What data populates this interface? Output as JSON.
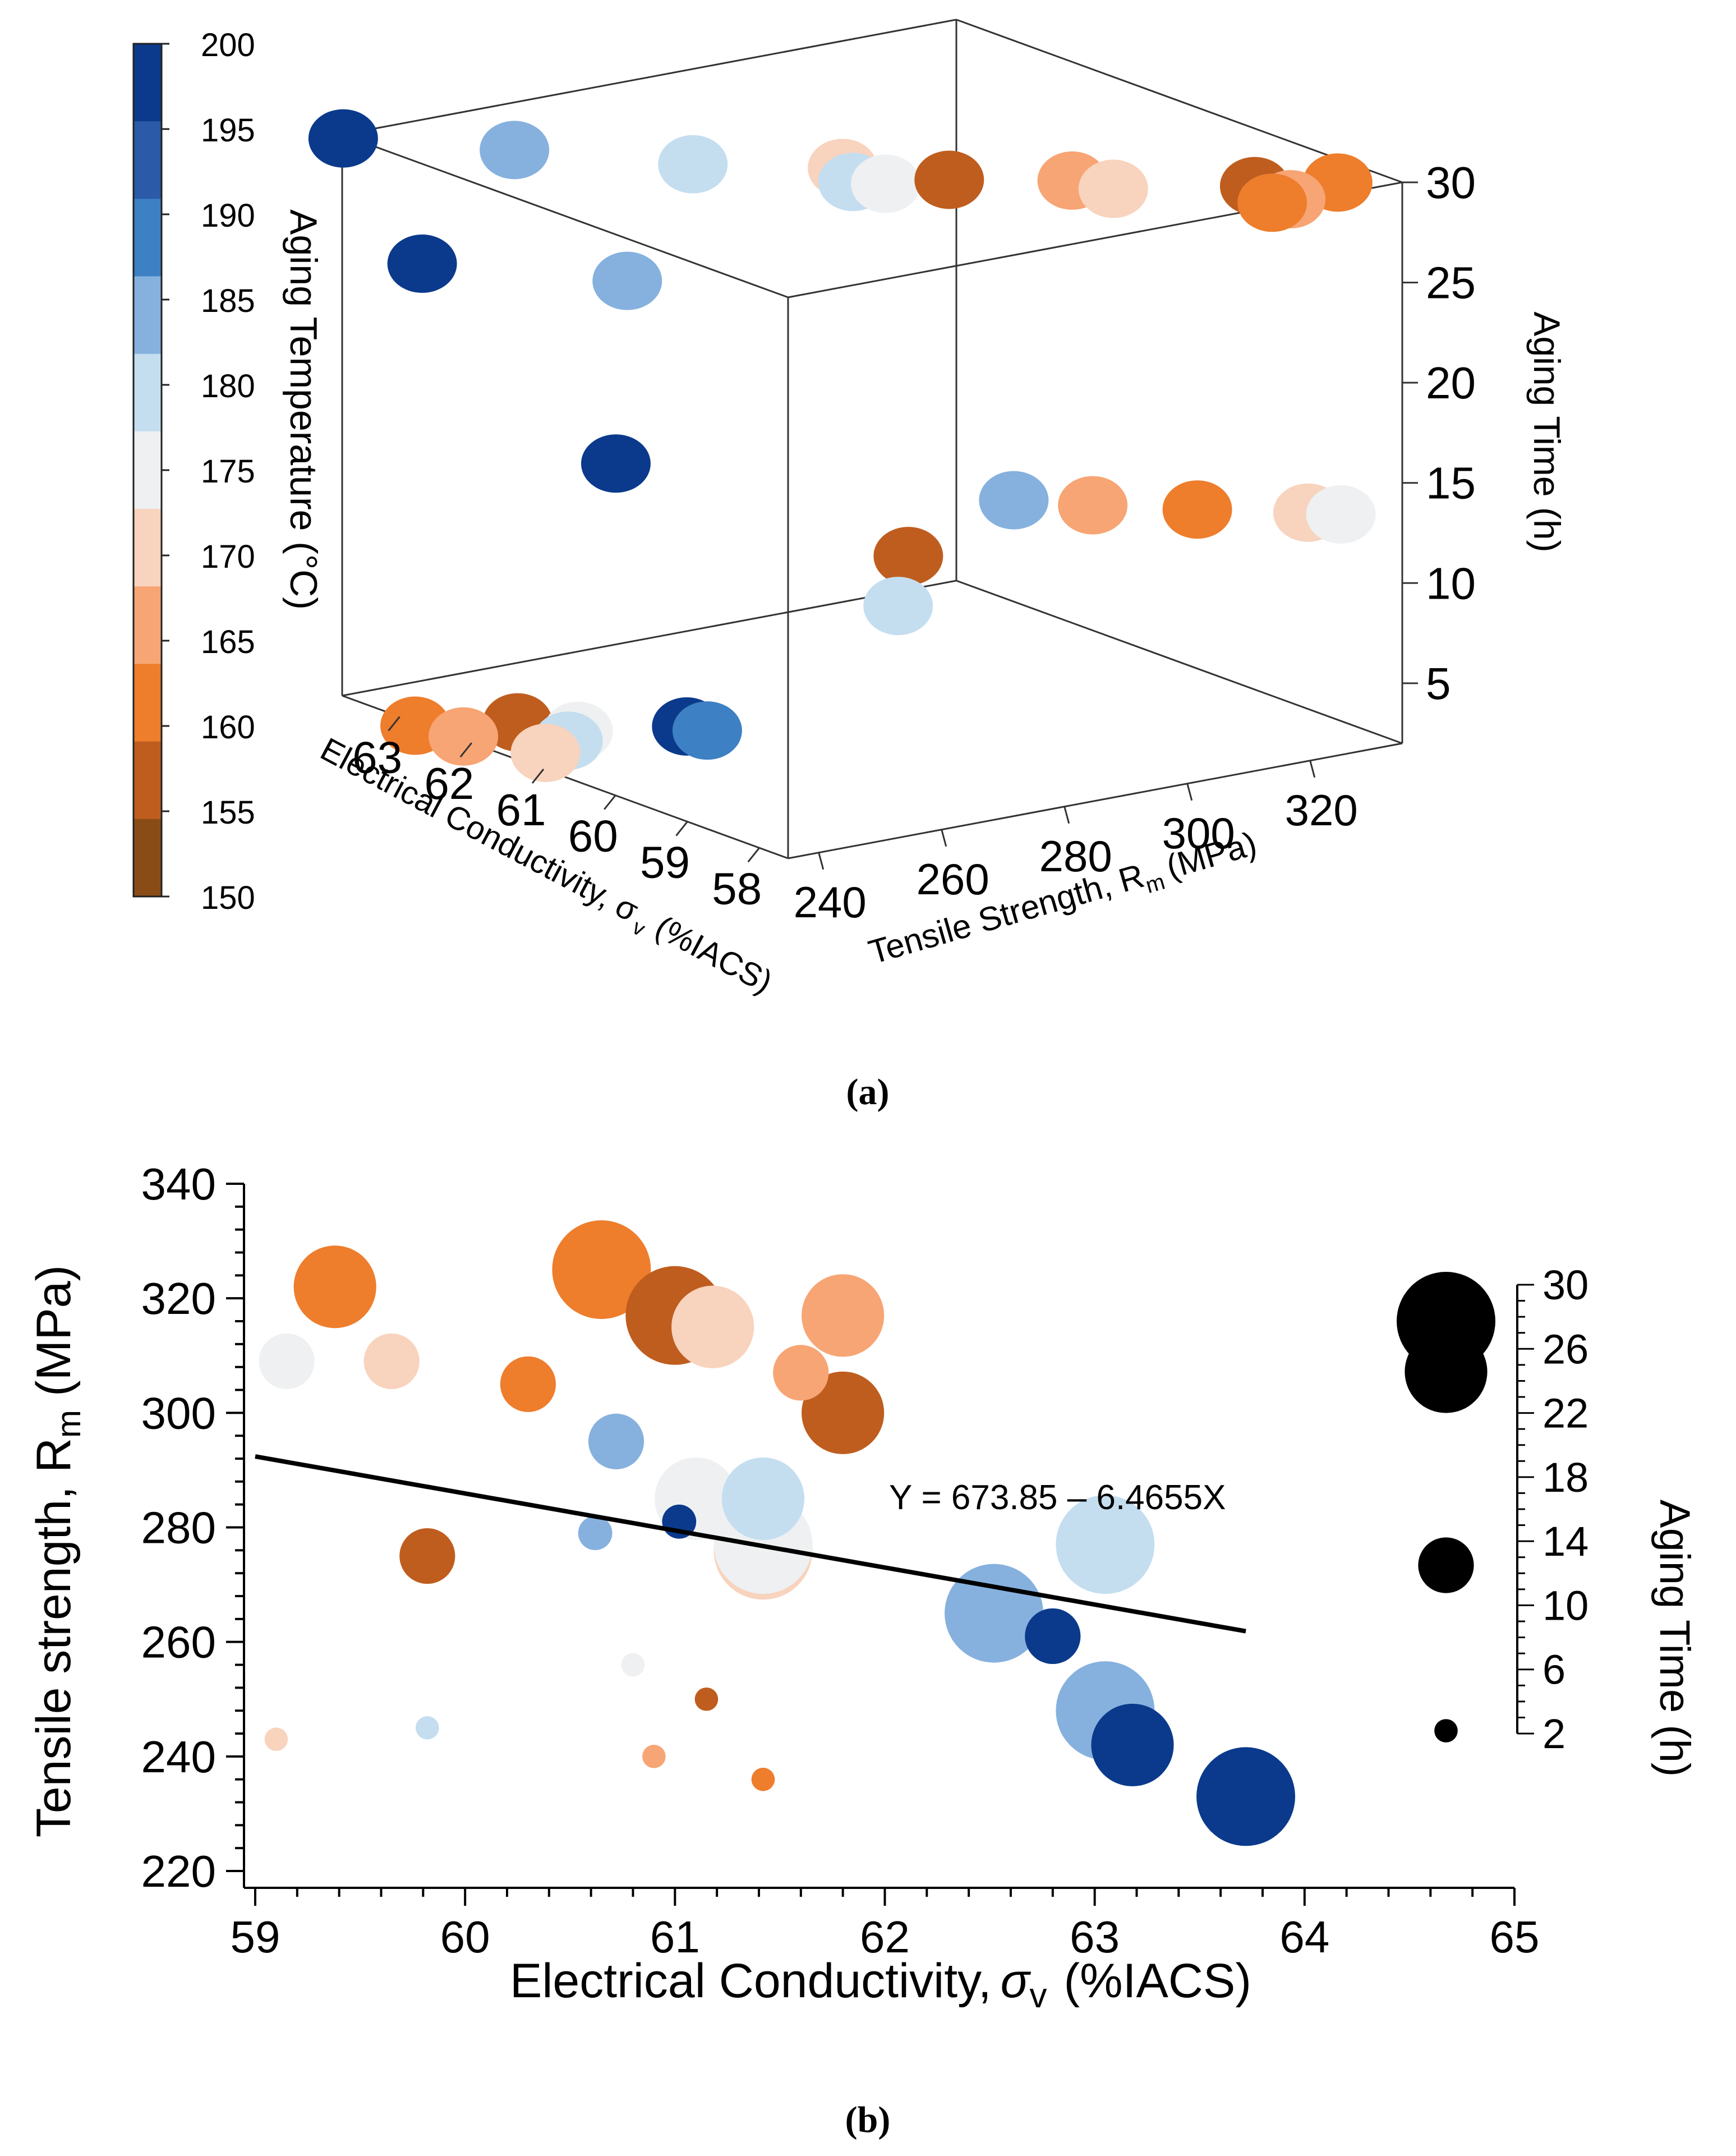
{
  "captions": {
    "a": "(a)",
    "b": "(b)"
  },
  "colorbar": {
    "label": "Aging Temperature (°C)",
    "ticks": [
      "200",
      "195",
      "190",
      "185",
      "180",
      "175",
      "170",
      "165",
      "160",
      "155",
      "150"
    ],
    "stops": [
      {
        "t": 197.5,
        "color": "#0b3a8c"
      },
      {
        "t": 192.5,
        "color": "#2a5aa8"
      },
      {
        "t": 187.5,
        "color": "#3d80c4"
      },
      {
        "t": 182.5,
        "color": "#86b1de"
      },
      {
        "t": 177.5,
        "color": "#c4def0"
      },
      {
        "t": 172.5,
        "color": "#eef0f1"
      },
      {
        "t": 167.5,
        "color": "#f8d3bd"
      },
      {
        "t": 162.5,
        "color": "#f7a574"
      },
      {
        "t": 157.5,
        "color": "#ee7d2c"
      },
      {
        "t": 152.5,
        "color": "#bf5d1f"
      },
      {
        "t": 147.5,
        "color": "#8a4c17"
      }
    ]
  },
  "chart_data": [
    {
      "type": "scatter",
      "id": "a",
      "projection": "3d",
      "xlabel": "Tensile Strength, R",
      "xlabel_sub": "m",
      "xlabel_unit": "(MPa)",
      "ylabel": "Electrical Conductivity, σ",
      "ylabel_sub": "v",
      "ylabel_unit": "(%IACS)",
      "zlabel": "Aging Time (h)",
      "x_ticks": [
        240,
        260,
        280,
        300,
        320
      ],
      "y_ticks": [
        58,
        59,
        60,
        61,
        62,
        63
      ],
      "z_ticks": [
        5,
        10,
        15,
        20,
        25,
        30
      ],
      "x_range": [
        235,
        335
      ],
      "y_range": [
        57.6,
        63.8
      ],
      "z_range": [
        2,
        30
      ],
      "color_by": "Aging Temperature (°C)",
      "points": [
        {
          "x": 234,
          "y": 63.7,
          "z": 30,
          "t": 196
        },
        {
          "x": 249,
          "y": 62.6,
          "z": 30,
          "t": 184
        },
        {
          "x": 264,
          "y": 61.4,
          "z": 30,
          "t": 175
        },
        {
          "x": 279,
          "y": 60.6,
          "z": 30,
          "t": 165
        },
        {
          "x": 318,
          "y": 58.2,
          "z": 30,
          "t": 152
        },
        {
          "x": 328,
          "y": 57.9,
          "z": 30,
          "t": 156
        },
        {
          "x": 300,
          "y": 59.2,
          "z": 30,
          "t": 160
        },
        {
          "x": 302,
          "y": 58.8,
          "z": 30,
          "t": 168
        },
        {
          "x": 287,
          "y": 59.8,
          "z": 30,
          "t": 152
        },
        {
          "x": 276,
          "y": 60.2,
          "z": 30,
          "t": 175
        },
        {
          "x": 279,
          "y": 60.0,
          "z": 30,
          "t": 170
        },
        {
          "x": 318,
          "y": 57.7,
          "z": 30,
          "t": 160
        },
        {
          "x": 315,
          "y": 57.7,
          "z": 30,
          "t": 156
        },
        {
          "x": 241,
          "y": 63.2,
          "z": 24,
          "t": 196
        },
        {
          "x": 258,
          "y": 61.8,
          "z": 24,
          "t": 184
        },
        {
          "x": 262,
          "y": 62.3,
          "z": 14,
          "t": 197
        },
        {
          "x": 301,
          "y": 59.0,
          "z": 14,
          "t": 160
        },
        {
          "x": 294,
          "y": 59.5,
          "z": 14,
          "t": 184
        },
        {
          "x": 311,
          "y": 58.4,
          "z": 14,
          "t": 156
        },
        {
          "x": 322,
          "y": 57.8,
          "z": 14,
          "t": 166
        },
        {
          "x": 325,
          "y": 57.6,
          "z": 14,
          "t": 170
        },
        {
          "x": 278,
          "y": 59.6,
          "z": 12,
          "t": 152
        },
        {
          "x": 274,
          "y": 59.4,
          "z": 10,
          "t": 175
        },
        {
          "x": 263,
          "y": 61.4,
          "z": 2,
          "t": 198
        },
        {
          "x": 264,
          "y": 61.2,
          "z": 2,
          "t": 185
        },
        {
          "x": 234,
          "y": 62.7,
          "z": 2,
          "t": 155
        },
        {
          "x": 236,
          "y": 62.2,
          "z": 2,
          "t": 160
        },
        {
          "x": 246,
          "y": 62.3,
          "z": 2,
          "t": 152
        },
        {
          "x": 250,
          "y": 61.8,
          "z": 2,
          "t": 170
        },
        {
          "x": 246,
          "y": 61.6,
          "z": 2,
          "t": 175
        },
        {
          "x": 240,
          "y": 61.4,
          "z": 2,
          "t": 165
        }
      ]
    },
    {
      "type": "scatter",
      "id": "b",
      "xlabel": "Electrical Conductivity,",
      "xlabel_symbol": "σ",
      "xlabel_sub": "v",
      "xlabel_unit": "(%IACS)",
      "ylabel": "Tensile strength, R",
      "ylabel_sub": "m",
      "ylabel_unit": "(MPa)",
      "xlim": [
        59,
        65
      ],
      "ylim": [
        220,
        340
      ],
      "x_ticks": [
        59,
        60,
        61,
        62,
        63,
        64,
        65
      ],
      "y_ticks": [
        220,
        240,
        260,
        280,
        300,
        320,
        340
      ],
      "size_by": "Aging Time (h)",
      "color_by": "Aging Temperature (°C)",
      "size_legend": {
        "label": "Aging Time (h)",
        "ticks": [
          2,
          6,
          10,
          14,
          18,
          22,
          26,
          30
        ],
        "markers": [
          30,
          24,
          14,
          2
        ]
      },
      "fit": {
        "label": "Y = 673.85 – 6.4655X",
        "intercept": 673.85,
        "slope": -6.4655,
        "x_range": [
          59.0,
          63.72
        ]
      },
      "points": [
        {
          "x": 59.38,
          "y": 322,
          "time": 24,
          "t": 156
        },
        {
          "x": 59.15,
          "y": 309,
          "time": 14,
          "t": 170
        },
        {
          "x": 59.65,
          "y": 309,
          "time": 14,
          "t": 165
        },
        {
          "x": 60.3,
          "y": 305,
          "time": 14,
          "t": 156
        },
        {
          "x": 60.65,
          "y": 325,
          "time": 30,
          "t": 156
        },
        {
          "x": 61.0,
          "y": 317,
          "time": 30,
          "t": 152
        },
        {
          "x": 61.18,
          "y": 315,
          "time": 24,
          "t": 165
        },
        {
          "x": 61.8,
          "y": 317,
          "time": 24,
          "t": 160
        },
        {
          "x": 61.6,
          "y": 307,
          "time": 14,
          "t": 160
        },
        {
          "x": 61.8,
          "y": 300,
          "time": 24,
          "t": 152
        },
        {
          "x": 60.72,
          "y": 295,
          "time": 14,
          "t": 184
        },
        {
          "x": 61.1,
          "y": 285,
          "time": 24,
          "t": 170
        },
        {
          "x": 61.42,
          "y": 285,
          "time": 24,
          "t": 175
        },
        {
          "x": 61.42,
          "y": 276,
          "time": 30,
          "t": 165
        },
        {
          "x": 61.42,
          "y": 277,
          "time": 30,
          "t": 170
        },
        {
          "x": 59.82,
          "y": 275,
          "time": 14,
          "t": 152
        },
        {
          "x": 60.62,
          "y": 279,
          "time": 6,
          "t": 184
        },
        {
          "x": 61.02,
          "y": 281,
          "time": 6,
          "t": 196
        },
        {
          "x": 63.05,
          "y": 277,
          "time": 30,
          "t": 175
        },
        {
          "x": 62.52,
          "y": 265,
          "time": 30,
          "t": 184
        },
        {
          "x": 62.8,
          "y": 261,
          "time": 14,
          "t": 196
        },
        {
          "x": 63.05,
          "y": 248,
          "time": 30,
          "t": 184
        },
        {
          "x": 63.18,
          "y": 242,
          "time": 24,
          "t": 196
        },
        {
          "x": 63.72,
          "y": 233,
          "time": 30,
          "t": 196
        },
        {
          "x": 59.1,
          "y": 243,
          "time": 2,
          "t": 165
        },
        {
          "x": 59.82,
          "y": 245,
          "time": 2,
          "t": 175
        },
        {
          "x": 60.8,
          "y": 256,
          "time": 2,
          "t": 170
        },
        {
          "x": 60.9,
          "y": 240,
          "time": 2,
          "t": 160
        },
        {
          "x": 61.15,
          "y": 250,
          "time": 2,
          "t": 152
        },
        {
          "x": 61.42,
          "y": 236,
          "time": 2,
          "t": 156
        }
      ]
    }
  ]
}
